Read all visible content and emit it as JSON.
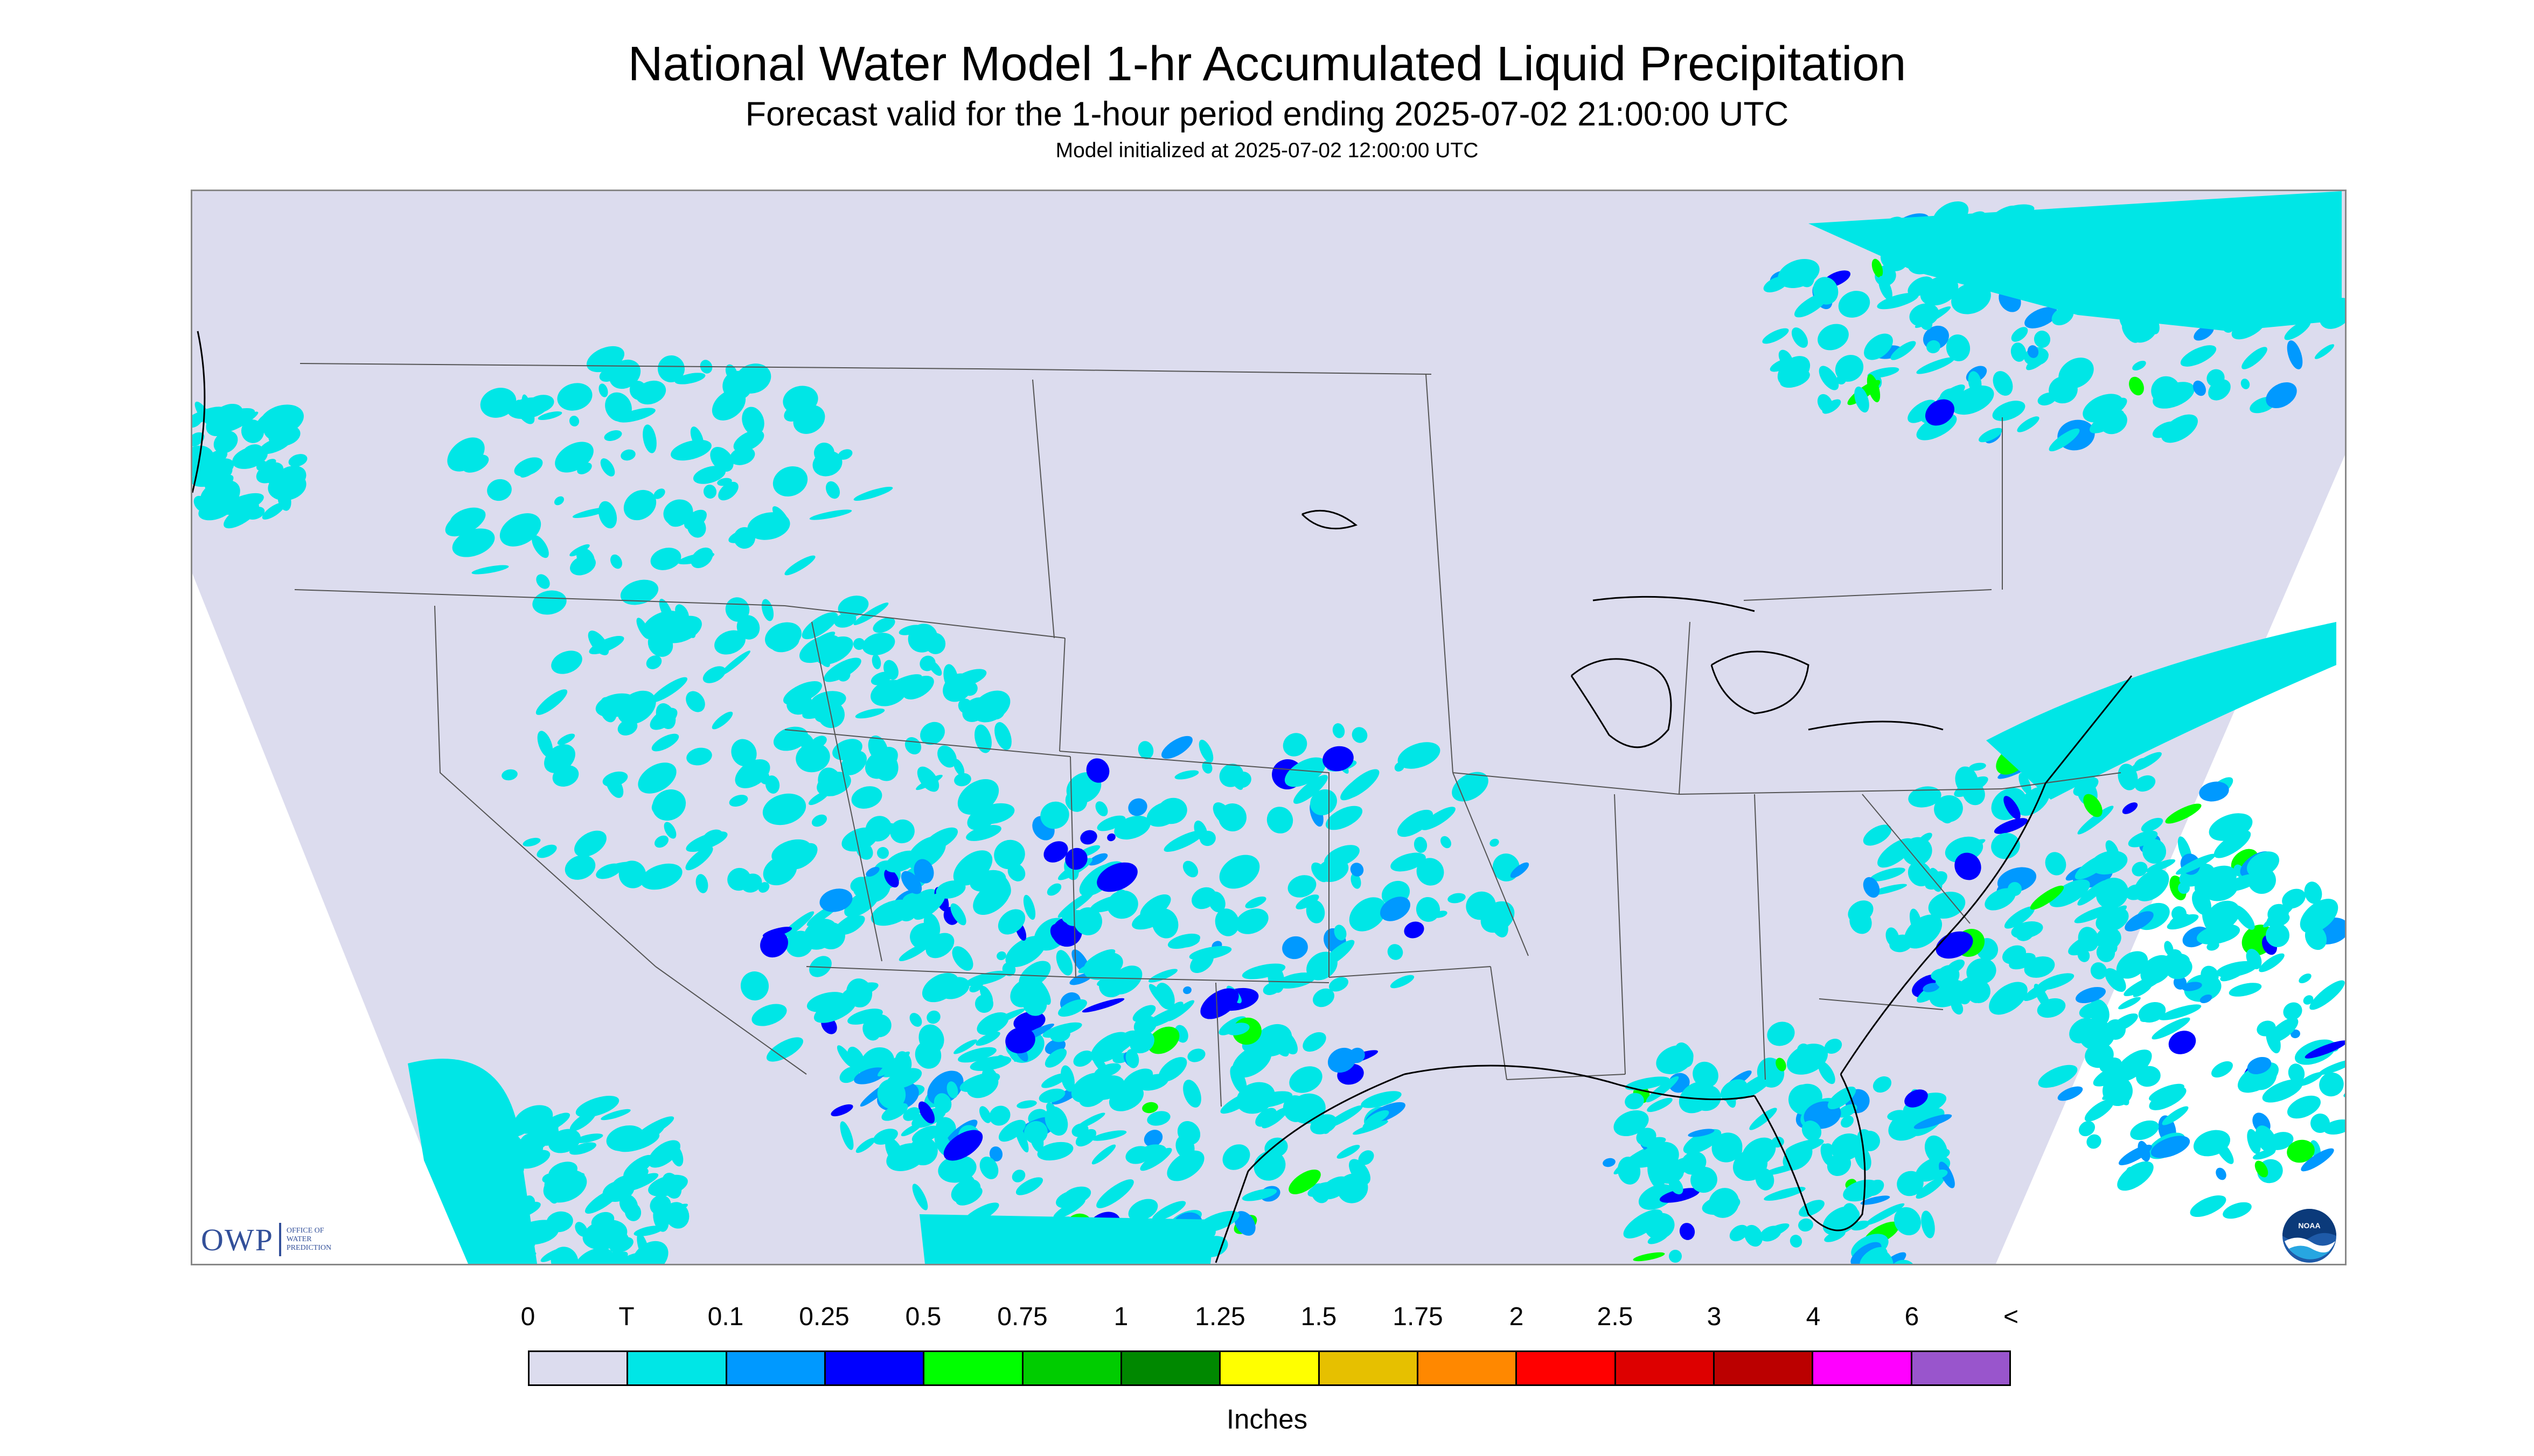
{
  "header": {
    "title": "National Water Model 1-hr Accumulated Liquid Precipitation",
    "subtitle": "Forecast valid for the 1-hour period ending 2025-07-02 21:00:00 UTC",
    "init_line": "Model initialized at 2025-07-02 12:00:00 UTC"
  },
  "map": {
    "background_color": "#dcdcee",
    "outside_color": "#ffffff",
    "boundary_color": "#555555",
    "coast_color": "#000000",
    "precip_regions": [
      {
        "name": "pacific-northwest-coast",
        "level": "T"
      },
      {
        "name": "northern-rockies",
        "level": "T"
      },
      {
        "name": "great-basin-four-corners",
        "level": "T"
      },
      {
        "name": "southern-rockies-new-mexico",
        "level": "0.25"
      },
      {
        "name": "texas-panhandle-oklahoma",
        "level": "0.25"
      },
      {
        "name": "central-south-texas",
        "level": "0.5"
      },
      {
        "name": "mexico-pacific-coast",
        "level": "T"
      },
      {
        "name": "ontario-quebec",
        "level": "0.5"
      },
      {
        "name": "mid-atlantic-carolinas",
        "level": "0.75"
      },
      {
        "name": "atlantic-offshore",
        "level": "0.75"
      },
      {
        "name": "florida-gulf",
        "level": "1"
      }
    ]
  },
  "logos": {
    "owp_text": "OWP",
    "owp_sub": [
      "OFFICE OF",
      "WATER",
      "PREDICTION"
    ],
    "noaa_text": "NOAA"
  },
  "colorbar": {
    "labels": [
      "0",
      "T",
      "0.1",
      "0.25",
      "0.5",
      "0.75",
      "1",
      "1.25",
      "1.5",
      "1.75",
      "2",
      "2.5",
      "3",
      "4",
      "6",
      "<"
    ],
    "colors": [
      "#dcdcee",
      "#00e6e6",
      "#0099ff",
      "#0000ff",
      "#00ff00",
      "#00cc00",
      "#008800",
      "#ffff00",
      "#e6c000",
      "#ff8800",
      "#ff0000",
      "#dd0000",
      "#bb0000",
      "#ff00ff",
      "#9955cc"
    ],
    "units": "Inches"
  }
}
